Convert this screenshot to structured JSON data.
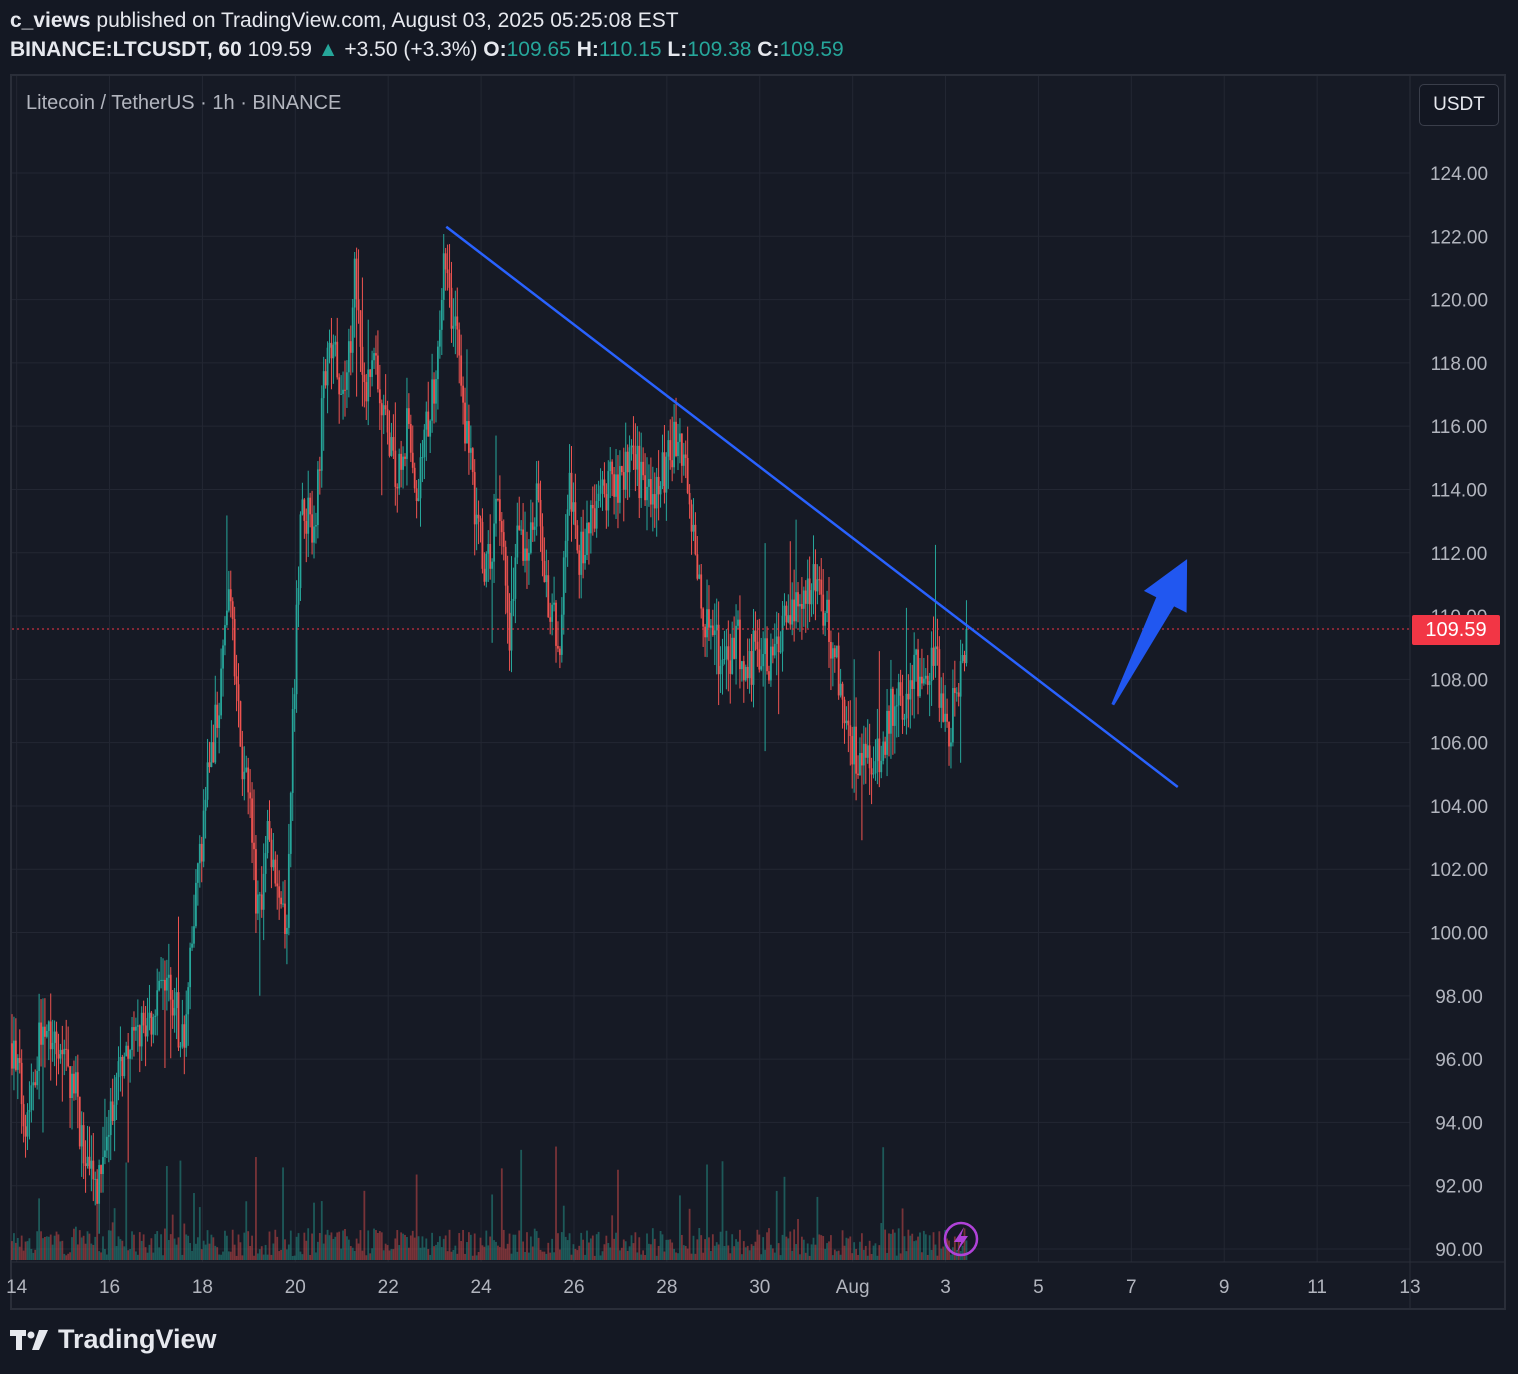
{
  "header": {
    "author": "c_views",
    "published_text": "published on TradingView.com, August 03, 2025 05:25:08 EST",
    "symbol": "BINANCE:LTCUSDT, 60",
    "last": "109.59",
    "change": "+3.50 (+3.3%)",
    "open_label": "O:",
    "open": "109.65",
    "high_label": "H:",
    "high": "110.15",
    "low_label": "L:",
    "low": "109.38",
    "close_label": "C:",
    "close": "109.59"
  },
  "chart": {
    "symbol_title": "Litecoin / TetherUS · 1h · BINANCE",
    "currency": "USDT",
    "last_price_label": "109.59"
  },
  "footer": {
    "brand": "TradingView"
  },
  "colors": {
    "up": "#26a69a",
    "down": "#ef5350",
    "trendline": "#2962ff",
    "arrow": "#2157f0",
    "price_tag": "#f23645",
    "grid": "#232733"
  },
  "chart_data": {
    "type": "candlestick",
    "title": "Litecoin / TetherUS · 1h · BINANCE",
    "y_ticks": [
      90,
      92,
      94,
      96,
      98,
      100,
      102,
      104,
      106,
      108,
      110,
      112,
      114,
      116,
      118,
      120,
      122,
      124
    ],
    "y_range": [
      89.6,
      126.2
    ],
    "x_ticks": [
      {
        "label": "14",
        "day": 14
      },
      {
        "label": "16",
        "day": 16
      },
      {
        "label": "18",
        "day": 18
      },
      {
        "label": "20",
        "day": 20
      },
      {
        "label": "22",
        "day": 22
      },
      {
        "label": "24",
        "day": 24
      },
      {
        "label": "26",
        "day": 26
      },
      {
        "label": "28",
        "day": 28
      },
      {
        "label": "30",
        "day": 30
      },
      {
        "label": "Aug",
        "day": 32
      },
      {
        "label": "3",
        "day": 34
      },
      {
        "label": "5",
        "day": 36
      },
      {
        "label": "7",
        "day": 38
      },
      {
        "label": "9",
        "day": 40
      },
      {
        "label": "11",
        "day": 42
      },
      {
        "label": "13",
        "day": 44
      }
    ],
    "price_path": [
      [
        13.9,
        96.5
      ],
      [
        14.2,
        94.2
      ],
      [
        14.6,
        97.5
      ],
      [
        14.9,
        96.5
      ],
      [
        15.3,
        94.8
      ],
      [
        15.5,
        92.2
      ],
      [
        15.8,
        92.0
      ],
      [
        16.2,
        95.8
      ],
      [
        16.6,
        96.8
      ],
      [
        17.0,
        97.5
      ],
      [
        17.3,
        98.5
      ],
      [
        17.6,
        96.2
      ],
      [
        17.8,
        100.2
      ],
      [
        18.1,
        104.5
      ],
      [
        18.35,
        107.5
      ],
      [
        18.6,
        111.0
      ],
      [
        18.8,
        106.0
      ],
      [
        19.0,
        104.0
      ],
      [
        19.2,
        100.5
      ],
      [
        19.4,
        103.0
      ],
      [
        19.6,
        101.0
      ],
      [
        19.8,
        100.0
      ],
      [
        19.95,
        107.0
      ],
      [
        20.15,
        114.0
      ],
      [
        20.4,
        112.0
      ],
      [
        20.6,
        117.0
      ],
      [
        20.8,
        118.5
      ],
      [
        21.1,
        117.0
      ],
      [
        21.3,
        121.0
      ],
      [
        21.5,
        117.0
      ],
      [
        21.7,
        118.5
      ],
      [
        21.9,
        116.0
      ],
      [
        22.2,
        114.5
      ],
      [
        22.4,
        116.0
      ],
      [
        22.6,
        114.0
      ],
      [
        22.8,
        115.5
      ],
      [
        23.0,
        117.5
      ],
      [
        23.2,
        121.0
      ],
      [
        23.45,
        119.0
      ],
      [
        23.7,
        115.5
      ],
      [
        23.9,
        113.0
      ],
      [
        24.1,
        111.5
      ],
      [
        24.4,
        113.5
      ],
      [
        24.6,
        109.5
      ],
      [
        24.8,
        112.5
      ],
      [
        25.0,
        112.0
      ],
      [
        25.2,
        113.5
      ],
      [
        25.5,
        110.0
      ],
      [
        25.7,
        109.5
      ],
      [
        25.9,
        114.0
      ],
      [
        26.1,
        111.5
      ],
      [
        26.3,
        113.0
      ],
      [
        26.6,
        114.0
      ],
      [
        26.9,
        114.2
      ],
      [
        27.2,
        115.0
      ],
      [
        27.4,
        114.5
      ],
      [
        27.6,
        113.5
      ],
      [
        27.9,
        114.5
      ],
      [
        28.2,
        115.5
      ],
      [
        28.4,
        114.5
      ],
      [
        28.6,
        112.5
      ],
      [
        28.8,
        110.0
      ],
      [
        29.1,
        109.0
      ],
      [
        29.3,
        108.5
      ],
      [
        29.5,
        109.5
      ],
      [
        29.7,
        108.0
      ],
      [
        29.9,
        109.0
      ],
      [
        30.2,
        108.5
      ],
      [
        30.5,
        109.5
      ],
      [
        30.7,
        110.0
      ],
      [
        30.9,
        111.0
      ],
      [
        31.2,
        111.0
      ],
      [
        31.5,
        109.5
      ],
      [
        31.8,
        107.5
      ],
      [
        32.0,
        106.0
      ],
      [
        32.3,
        105.2
      ],
      [
        32.6,
        105.8
      ],
      [
        32.9,
        107.5
      ],
      [
        33.1,
        107.0
      ],
      [
        33.3,
        108.5
      ],
      [
        33.6,
        107.8
      ],
      [
        33.8,
        108.8
      ],
      [
        34.0,
        106.0
      ],
      [
        34.25,
        107.5
      ],
      [
        34.45,
        109.59
      ]
    ],
    "trendline": {
      "start": [
        23.25,
        122.3
      ],
      "end": [
        39.0,
        104.6
      ]
    },
    "arrow": {
      "from": [
        37.6,
        107.2
      ],
      "to": [
        39.2,
        111.8
      ]
    },
    "last_price": 109.59
  }
}
